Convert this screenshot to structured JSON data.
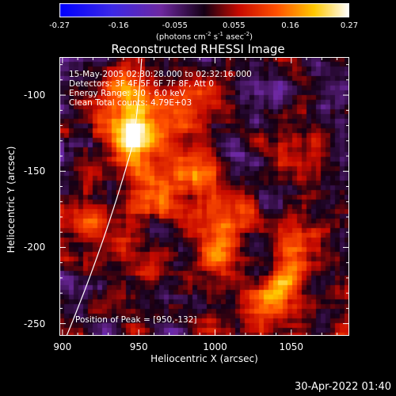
{
  "colorbar": {
    "ticks": [
      "-0.27",
      "-0.16",
      "-0.055",
      "0.055",
      "0.16",
      "0.27"
    ],
    "tick_values": [
      -0.27,
      -0.16,
      -0.055,
      0.055,
      0.16,
      0.27
    ],
    "units_pre": "(photons cm",
    "units_exp1": "-2",
    "units_mid": " s",
    "units_exp2": "-1",
    "units_post": " asec",
    "units_exp3": "-2",
    "units_close": ")"
  },
  "title": "Reconstructed RHESSI Image",
  "annotations": {
    "time_range": "15-May-2005 02:30:28.000 to 02:32:16.000",
    "detectors": "Detectors: 3F 4F 5F 6F 7F 8F, Att 0",
    "energy": "Energy Range: 3.0 - 6.0 keV",
    "clean": "Clean    Total counts: 4.79E+03",
    "peak": "Position of Peak = [950,-132]"
  },
  "axes": {
    "xlabel": "Heliocentric X (arcsec)",
    "ylabel": "Heliocentric Y (arcsec)",
    "xticks": [
      "900",
      "950",
      "1000",
      "1050"
    ],
    "xtick_values": [
      900,
      950,
      1000,
      1050
    ],
    "yticks": [
      "-100",
      "-150",
      "-200",
      "-250"
    ],
    "ytick_values": [
      -100,
      -150,
      -200,
      -250
    ]
  },
  "footer_date": "30-Apr-2022 01:40",
  "chart_data": {
    "type": "heatmap",
    "title": "Reconstructed RHESSI Image",
    "xlabel": "Heliocentric X (arcsec)",
    "ylabel": "Heliocentric Y (arcsec)",
    "xlim": [
      898,
      1088
    ],
    "ylim": [
      -258,
      -75
    ],
    "zlim": [
      -0.27,
      0.27
    ],
    "colormap": "blue-purple-red-yellow-white",
    "peak": [
      950,
      -132
    ],
    "limb_arc": true,
    "sources": [
      {
        "x": 948,
        "y": -130,
        "amp": 0.27
      },
      {
        "x": 942,
        "y": -100,
        "amp": 0.22
      },
      {
        "x": 960,
        "y": -165,
        "amp": 0.16
      },
      {
        "x": 990,
        "y": -150,
        "amp": 0.14
      },
      {
        "x": 1000,
        "y": -205,
        "amp": 0.13
      },
      {
        "x": 1040,
        "y": -235,
        "amp": 0.17
      },
      {
        "x": 1055,
        "y": -205,
        "amp": 0.12
      },
      {
        "x": 925,
        "y": -185,
        "amp": 0.1
      },
      {
        "x": 985,
        "y": -100,
        "amp": 0.1
      },
      {
        "x": 1060,
        "y": -130,
        "amp": 0.09
      },
      {
        "x": 1010,
        "y": -180,
        "amp": 0.11
      }
    ]
  }
}
